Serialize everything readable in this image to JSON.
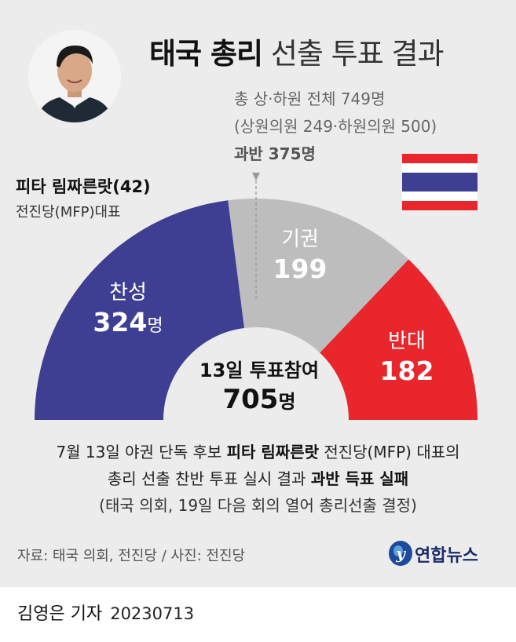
{
  "title": {
    "bold": "태국 총리",
    "light": "선출 투표 결과"
  },
  "info": {
    "line1": "총 상·하원 전체 749명",
    "line2": "(상원의원 249·하원의원 500)",
    "line3": "과반 375명"
  },
  "person": {
    "name": "피타 림짜른랏(42)",
    "party": "전진당(MFP)대표"
  },
  "center": {
    "label": "13일 투표참여",
    "total": "705",
    "unit": "명"
  },
  "segments": {
    "yes": {
      "label": "찬성",
      "value": "324",
      "unit": "명"
    },
    "abstain": {
      "label": "기권",
      "value": "199"
    },
    "no": {
      "label": "반대",
      "value": "182"
    }
  },
  "notes": {
    "line1_a": "7월 13일 야권 단독 후보 ",
    "line1_b": "피타 림짜른랏",
    "line1_c": " 전진당(MFP) 대표의",
    "line2_a": "총리 선출 찬반 투표 실시 결과 ",
    "line2_b": "과반 득표 실패",
    "line3": "(태국 의회, 19일 다음 회의 열어 총리선출 결정)"
  },
  "source": "자료: 태국 의회, 전진당 / 사진: 전진당",
  "logo": {
    "text": "연합뉴스",
    "mark": "y"
  },
  "credit": {
    "reporter": "김영은 기자",
    "date": "20230713"
  },
  "colors": {
    "yes": "#3e3f92",
    "abstain": "#bdbdbd",
    "no": "#e8262b",
    "background": "#ececec",
    "logo": "#1e4a9c"
  },
  "icons": [
    "thailand-flag-icon",
    "majority-marker-icon",
    "yonhap-logo-icon"
  ],
  "chart_data": {
    "type": "pie",
    "style": "half-donut",
    "title": "태국 총리 선출 투표 결과",
    "categories": [
      "찬성",
      "기권",
      "반대"
    ],
    "values": [
      324,
      199,
      182
    ],
    "total": 705,
    "total_seats": 749,
    "majority": 375
  }
}
